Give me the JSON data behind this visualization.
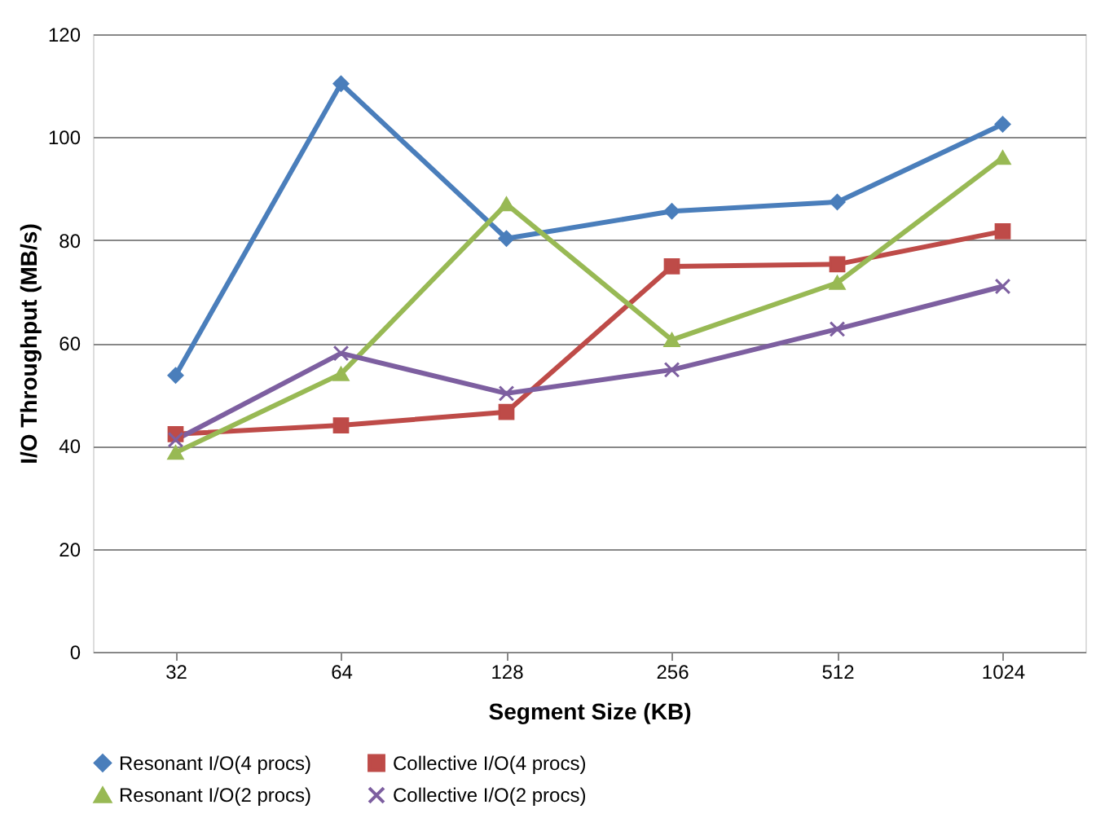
{
  "chart_data": {
    "type": "line",
    "xlabel": "Segment Size (KB)",
    "ylabel": "I/O Throughput (MB/s)",
    "categories": [
      "32",
      "64",
      "128",
      "256",
      "512",
      "1024"
    ],
    "series": [
      {
        "name": "Resonant I/O(4 procs)",
        "color": "#4a7ebb",
        "marker": "diamond",
        "values": [
          53.7,
          110.4,
          80.3,
          85.6,
          87.4,
          102.5
        ]
      },
      {
        "name": "Collective I/O(4 procs)",
        "color": "#be4b48",
        "marker": "square",
        "values": [
          42.3,
          44,
          46.6,
          74.9,
          75.3,
          81.7
        ]
      },
      {
        "name": "Resonant I/O(2 procs)",
        "color": "#98b954",
        "marker": "triangle",
        "values": [
          38.7,
          54,
          87,
          60.6,
          71.7,
          96
        ]
      },
      {
        "name": "Collective I/O(2 procs)",
        "color": "#7d5fa0",
        "marker": "cross",
        "values": [
          41.2,
          58,
          50.2,
          54.8,
          62.7,
          71
        ]
      }
    ],
    "ylim": [
      0,
      120
    ],
    "yticks": [
      0,
      20,
      40,
      60,
      80,
      100,
      120
    ],
    "grid": "y",
    "legend": "bottom",
    "line_style": "solid"
  }
}
